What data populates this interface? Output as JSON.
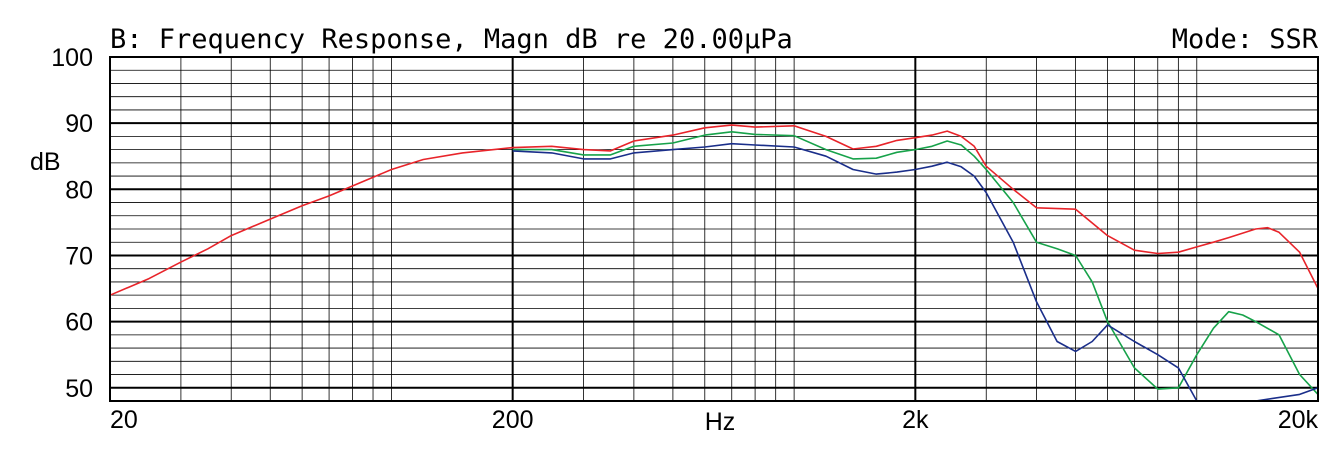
{
  "chart_data": {
    "type": "line",
    "title": "B: Frequency Response, Magn dB re 20.00µPa",
    "mode_label": "Mode: SSR",
    "xlabel": "Hz",
    "ylabel": "dB",
    "x_scale": "log",
    "xlim": [
      20,
      20000
    ],
    "ylim": [
      48,
      100
    ],
    "x_tick_labels": [
      {
        "value": 20,
        "label": "20"
      },
      {
        "value": 200,
        "label": "200"
      },
      {
        "value": 2000,
        "label": "2k"
      },
      {
        "value": 20000,
        "label": "20k"
      }
    ],
    "y_tick_labels": [
      {
        "value": 100,
        "label": "100"
      },
      {
        "value": 90,
        "label": "90"
      },
      {
        "value": 80,
        "label": "80"
      },
      {
        "value": 70,
        "label": "70"
      },
      {
        "value": 60,
        "label": "60"
      },
      {
        "value": 50,
        "label": "50"
      }
    ],
    "grid": true,
    "series": [
      {
        "color": "#e8242a",
        "points": [
          [
            20,
            64
          ],
          [
            25,
            66.5
          ],
          [
            30,
            69
          ],
          [
            35,
            71
          ],
          [
            40,
            73
          ],
          [
            50,
            75.5
          ],
          [
            60,
            77.5
          ],
          [
            70,
            79
          ],
          [
            80,
            80.5
          ],
          [
            100,
            83
          ],
          [
            120,
            84.5
          ],
          [
            150,
            85.5
          ],
          [
            200,
            86.3
          ],
          [
            250,
            86.5
          ],
          [
            300,
            86
          ],
          [
            350,
            85.8
          ],
          [
            400,
            87.3
          ],
          [
            500,
            88.2
          ],
          [
            600,
            89.3
          ],
          [
            700,
            89.7
          ],
          [
            800,
            89.4
          ],
          [
            1000,
            89.6
          ],
          [
            1200,
            88
          ],
          [
            1400,
            86.1
          ],
          [
            1600,
            86.5
          ],
          [
            1800,
            87.4
          ],
          [
            2000,
            87.8
          ],
          [
            2200,
            88.2
          ],
          [
            2400,
            88.8
          ],
          [
            2600,
            88
          ],
          [
            2800,
            86.5
          ],
          [
            3000,
            83.5
          ],
          [
            3500,
            80
          ],
          [
            4000,
            77.2
          ],
          [
            5000,
            77
          ],
          [
            6000,
            73
          ],
          [
            7000,
            70.8
          ],
          [
            8000,
            70.3
          ],
          [
            9000,
            70.5
          ],
          [
            10000,
            71.3
          ],
          [
            11000,
            72
          ],
          [
            12000,
            72.7
          ],
          [
            14000,
            74
          ],
          [
            15000,
            74.2
          ],
          [
            16000,
            73.5
          ],
          [
            18000,
            70.5
          ],
          [
            20000,
            65
          ]
        ]
      },
      {
        "color": "#17a24a",
        "points": [
          [
            200,
            86
          ],
          [
            250,
            86
          ],
          [
            300,
            85.2
          ],
          [
            350,
            85.2
          ],
          [
            400,
            86.5
          ],
          [
            500,
            87
          ],
          [
            600,
            88.2
          ],
          [
            700,
            88.7
          ],
          [
            800,
            88.3
          ],
          [
            1000,
            88.1
          ],
          [
            1200,
            86
          ],
          [
            1400,
            84.6
          ],
          [
            1600,
            84.7
          ],
          [
            1800,
            85.6
          ],
          [
            2000,
            86
          ],
          [
            2200,
            86.5
          ],
          [
            2400,
            87.3
          ],
          [
            2600,
            86.7
          ],
          [
            2800,
            85
          ],
          [
            3000,
            83
          ],
          [
            3500,
            78
          ],
          [
            4000,
            72
          ],
          [
            4500,
            71
          ],
          [
            5000,
            70
          ],
          [
            5500,
            66
          ],
          [
            6000,
            60
          ],
          [
            7000,
            53
          ],
          [
            8000,
            49.8
          ],
          [
            9000,
            50
          ],
          [
            10000,
            55
          ],
          [
            11000,
            59
          ],
          [
            12000,
            61.5
          ],
          [
            13000,
            61
          ],
          [
            14000,
            60
          ],
          [
            16000,
            58
          ],
          [
            18000,
            52
          ],
          [
            20000,
            49
          ]
        ]
      },
      {
        "color": "#1a2e8a",
        "points": [
          [
            200,
            85.8
          ],
          [
            250,
            85.5
          ],
          [
            300,
            84.6
          ],
          [
            350,
            84.6
          ],
          [
            400,
            85.5
          ],
          [
            500,
            86
          ],
          [
            600,
            86.4
          ],
          [
            700,
            86.9
          ],
          [
            800,
            86.7
          ],
          [
            1000,
            86.4
          ],
          [
            1200,
            85
          ],
          [
            1400,
            83
          ],
          [
            1600,
            82.3
          ],
          [
            1800,
            82.6
          ],
          [
            2000,
            83
          ],
          [
            2200,
            83.5
          ],
          [
            2400,
            84.1
          ],
          [
            2600,
            83.4
          ],
          [
            2800,
            82
          ],
          [
            3000,
            79.5
          ],
          [
            3500,
            72
          ],
          [
            4000,
            63
          ],
          [
            4500,
            57
          ],
          [
            5000,
            55.5
          ],
          [
            5500,
            57
          ],
          [
            6000,
            59.5
          ],
          [
            7000,
            57
          ],
          [
            8000,
            55
          ],
          [
            9000,
            53
          ],
          [
            10000,
            48
          ],
          [
            14000,
            48
          ],
          [
            18000,
            49
          ],
          [
            20000,
            50
          ]
        ]
      }
    ]
  }
}
